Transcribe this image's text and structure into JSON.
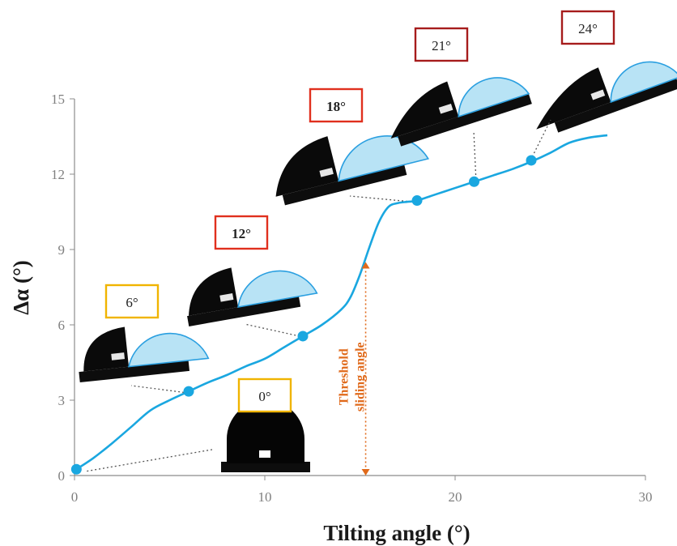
{
  "chart_data": {
    "type": "line",
    "xlabel": "Tilting angle (°)",
    "ylabel": "Δα (°)",
    "xlim": [
      0,
      30
    ],
    "ylim": [
      0,
      15
    ],
    "x_ticks": [
      "0",
      "10",
      "20",
      "30"
    ],
    "y_ticks": [
      "0",
      "3",
      "6",
      "9",
      "12",
      "15"
    ],
    "grid": false,
    "line_color": "#1aa7e0",
    "series": [
      {
        "curve_x": [
          0.1,
          1,
          2,
          3,
          4,
          5,
          6,
          7,
          8,
          9,
          10,
          11,
          12,
          13,
          14,
          14.5,
          15,
          15.5,
          16,
          16.5,
          17,
          17.5,
          18,
          19,
          20,
          21,
          22,
          23,
          24,
          25,
          26,
          27,
          28
        ],
        "curve_y": [
          0.25,
          0.7,
          1.3,
          1.95,
          2.6,
          3.0,
          3.35,
          3.7,
          4.0,
          4.35,
          4.65,
          5.1,
          5.55,
          6.0,
          6.6,
          7.1,
          8.0,
          9.1,
          10.1,
          10.7,
          10.85,
          10.9,
          10.95,
          11.2,
          11.45,
          11.7,
          11.95,
          12.2,
          12.5,
          12.85,
          13.25,
          13.45,
          13.55
        ],
        "points_x": [
          0.1,
          6,
          12,
          18,
          21,
          24
        ],
        "points_y": [
          0.25,
          3.35,
          5.55,
          10.95,
          11.7,
          12.55
        ]
      }
    ],
    "annotations": {
      "threshold_label": [
        "Threshold",
        "sliding angle"
      ],
      "threshold_color": "#e06a1b",
      "threshold_x": 15.3,
      "threshold_y_range": [
        0,
        8.5
      ],
      "droplet_labels": [
        {
          "text": "0°",
          "border": "#f0b400",
          "bold": false
        },
        {
          "text": "6°",
          "border": "#f0b400",
          "bold": false
        },
        {
          "text": "12°",
          "border": "#e0301e",
          "bold": true
        },
        {
          "text": "18°",
          "border": "#e0301e",
          "bold": true
        },
        {
          "text": "21°",
          "border": "#a61c1c",
          "bold": false
        },
        {
          "text": "24°",
          "border": "#a61c1c",
          "bold": false
        }
      ]
    }
  }
}
